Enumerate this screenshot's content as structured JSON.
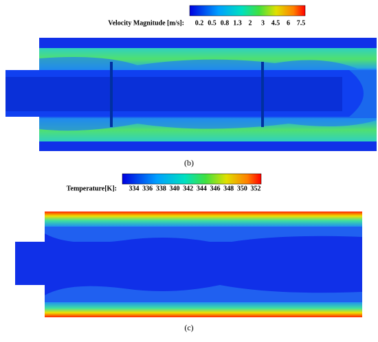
{
  "panels": [
    {
      "colorbar": {
        "label": "Velocity Magnitude [m/s]:",
        "ticks": [
          "0.2",
          "0.5",
          "0.8",
          "1.3",
          "2",
          "3",
          "4.5",
          "6",
          "7.5"
        ]
      },
      "caption": "(b)"
    },
    {
      "colorbar": {
        "label": "Temperature[K]:",
        "ticks": [
          "334",
          "336",
          "338",
          "340",
          "342",
          "344",
          "346",
          "348",
          "350",
          "352"
        ]
      },
      "caption": "(c)"
    }
  ]
}
